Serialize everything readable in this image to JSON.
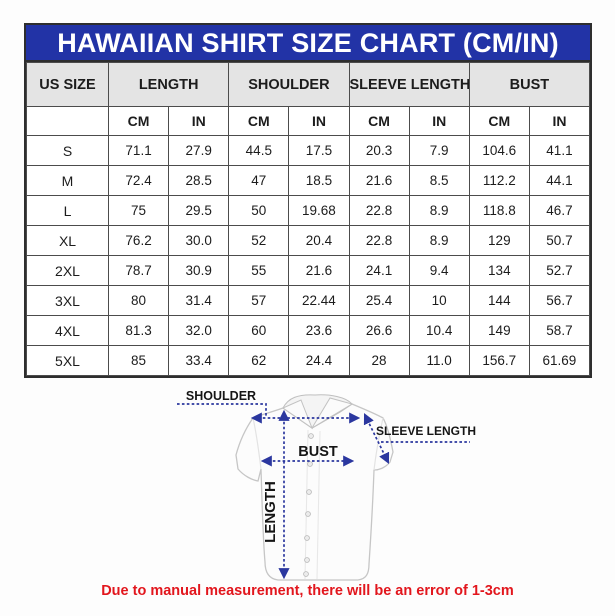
{
  "title": "HAWAIIAN SHIRT SIZE CHART (CM/IN)",
  "table": {
    "groups": [
      {
        "label": "US SIZE",
        "span": 1
      },
      {
        "label": "LENGTH",
        "span": 2
      },
      {
        "label": "SHOULDER",
        "span": 2
      },
      {
        "label": "SLEEVE LENGTH",
        "span": 2
      },
      {
        "label": "BUST",
        "span": 2
      }
    ],
    "unit_headers": [
      "CM",
      "IN",
      "CM",
      "IN",
      "CM",
      "IN",
      "CM",
      "IN"
    ],
    "rows": [
      {
        "size": "S",
        "values": [
          "71.1",
          "27.9",
          "44.5",
          "17.5",
          "20.3",
          "7.9",
          "104.6",
          "41.1"
        ]
      },
      {
        "size": "M",
        "values": [
          "72.4",
          "28.5",
          "47",
          "18.5",
          "21.6",
          "8.5",
          "112.2",
          "44.1"
        ]
      },
      {
        "size": "L",
        "values": [
          "75",
          "29.5",
          "50",
          "19.68",
          "22.8",
          "8.9",
          "118.8",
          "46.7"
        ]
      },
      {
        "size": "XL",
        "values": [
          "76.2",
          "30.0",
          "52",
          "20.4",
          "22.8",
          "8.9",
          "129",
          "50.7"
        ]
      },
      {
        "size": "2XL",
        "values": [
          "78.7",
          "30.9",
          "55",
          "21.6",
          "24.1",
          "9.4",
          "134",
          "52.7"
        ]
      },
      {
        "size": "3XL",
        "values": [
          "80",
          "31.4",
          "57",
          "22.44",
          "25.4",
          "10",
          "144",
          "56.7"
        ]
      },
      {
        "size": "4XL",
        "values": [
          "81.3",
          "32.0",
          "60",
          "23.6",
          "26.6",
          "10.4",
          "149",
          "58.7"
        ]
      },
      {
        "size": "5XL",
        "values": [
          "85",
          "33.4",
          "62",
          "24.4",
          "28",
          "11.0",
          "156.7",
          "61.69"
        ]
      }
    ]
  },
  "diagram": {
    "labels": {
      "shoulder": "SHOULDER",
      "sleeve_length": "SLEEVE LENGTH",
      "bust": "BUST",
      "length": "LENGTH"
    }
  },
  "footer": {
    "note": "Due to manual measurement, there will be an error of 1-3cm"
  },
  "colors": {
    "title_bg": "#2233a6",
    "title_text": "#ffffff",
    "header_bg": "#e4e4e4",
    "arrow_navy": "#2b379f",
    "footer_red": "#e2161d"
  }
}
